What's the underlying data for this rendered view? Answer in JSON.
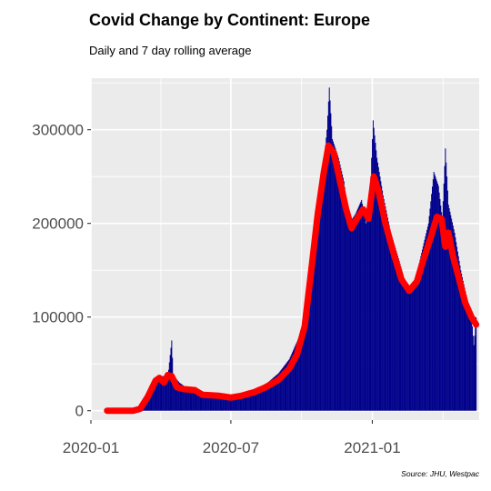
{
  "chart_data": {
    "type": "bar",
    "title": "Covid Change by Continent: Europe",
    "subtitle": "Daily and 7 day rolling average",
    "caption": "Source: JHU, Westpac",
    "xlabel": "",
    "ylabel": "",
    "x_range": [
      "2020-01-01",
      "2021-05-20"
    ],
    "ylim": [
      -10000,
      355000
    ],
    "y_ticks": [
      {
        "value": 0,
        "label": "0"
      },
      {
        "value": 100000,
        "label": "100000"
      },
      {
        "value": 200000,
        "label": "200000"
      },
      {
        "value": 300000,
        "label": "300000"
      }
    ],
    "x_ticks": [
      {
        "date": "2020-01-01",
        "label": "2020-01"
      },
      {
        "date": "2020-07-01",
        "label": "2020-07"
      },
      {
        "date": "2021-01-01",
        "label": "2021-01"
      }
    ],
    "grid": true,
    "colors": {
      "panel": "#ebebeb",
      "grid": "#ffffff",
      "bars": "#00008b",
      "rolling_line": "#ff0000"
    },
    "daily_keypoints": [
      [
        "2020-01-22",
        0
      ],
      [
        "2020-02-20",
        100
      ],
      [
        "2020-03-01",
        800
      ],
      [
        "2020-03-08",
        3000
      ],
      [
        "2020-03-14",
        12000
      ],
      [
        "2020-03-20",
        25000
      ],
      [
        "2020-03-27",
        35000
      ],
      [
        "2020-04-03",
        37000
      ],
      [
        "2020-04-10",
        36000
      ],
      [
        "2020-04-15",
        75000
      ],
      [
        "2020-04-17",
        38000
      ],
      [
        "2020-04-25",
        30000
      ],
      [
        "2020-05-05",
        24000
      ],
      [
        "2020-05-20",
        21000
      ],
      [
        "2020-06-05",
        18000
      ],
      [
        "2020-06-25",
        17000
      ],
      [
        "2020-07-05",
        15000
      ],
      [
        "2020-07-20",
        17000
      ],
      [
        "2020-08-01",
        21000
      ],
      [
        "2020-08-15",
        28000
      ],
      [
        "2020-09-01",
        40000
      ],
      [
        "2020-09-15",
        55000
      ],
      [
        "2020-10-01",
        85000
      ],
      [
        "2020-10-10",
        125000
      ],
      [
        "2020-10-20",
        180000
      ],
      [
        "2020-10-28",
        250000
      ],
      [
        "2020-11-03",
        300000
      ],
      [
        "2020-11-06",
        345000
      ],
      [
        "2020-11-10",
        290000
      ],
      [
        "2020-11-18",
        270000
      ],
      [
        "2020-11-25",
        245000
      ],
      [
        "2020-12-02",
        200000
      ],
      [
        "2020-12-10",
        210000
      ],
      [
        "2020-12-18",
        225000
      ],
      [
        "2020-12-24",
        200000
      ],
      [
        "2020-12-30",
        250000
      ],
      [
        "2021-01-02",
        310000
      ],
      [
        "2021-01-07",
        270000
      ],
      [
        "2021-01-15",
        230000
      ],
      [
        "2021-01-25",
        190000
      ],
      [
        "2021-02-05",
        160000
      ],
      [
        "2021-02-15",
        130000
      ],
      [
        "2021-02-25",
        135000
      ],
      [
        "2021-03-05",
        165000
      ],
      [
        "2021-03-15",
        200000
      ],
      [
        "2021-03-22",
        255000
      ],
      [
        "2021-03-28",
        240000
      ],
      [
        "2021-04-02",
        205000
      ],
      [
        "2021-04-06",
        280000
      ],
      [
        "2021-04-10",
        220000
      ],
      [
        "2021-04-18",
        190000
      ],
      [
        "2021-04-26",
        150000
      ],
      [
        "2021-05-04",
        120000
      ],
      [
        "2021-05-10",
        100000
      ],
      [
        "2021-05-13",
        70000
      ],
      [
        "2021-05-16",
        100000
      ]
    ],
    "rolling_7day_keypoints": [
      [
        "2020-01-22",
        0
      ],
      [
        "2020-02-25",
        0
      ],
      [
        "2020-03-05",
        2000
      ],
      [
        "2020-03-15",
        15000
      ],
      [
        "2020-03-25",
        32000
      ],
      [
        "2020-03-30",
        35000
      ],
      [
        "2020-04-05",
        30000
      ],
      [
        "2020-04-10",
        38000
      ],
      [
        "2020-04-15",
        37000
      ],
      [
        "2020-04-22",
        25000
      ],
      [
        "2020-05-01",
        23000
      ],
      [
        "2020-05-15",
        22000
      ],
      [
        "2020-05-25",
        17000
      ],
      [
        "2020-06-15",
        16000
      ],
      [
        "2020-07-01",
        14000
      ],
      [
        "2020-07-15",
        16000
      ],
      [
        "2020-08-01",
        20000
      ],
      [
        "2020-08-15",
        25000
      ],
      [
        "2020-09-01",
        33000
      ],
      [
        "2020-09-15",
        45000
      ],
      [
        "2020-09-25",
        60000
      ],
      [
        "2020-10-05",
        90000
      ],
      [
        "2020-10-15",
        160000
      ],
      [
        "2020-10-22",
        210000
      ],
      [
        "2020-10-30",
        255000
      ],
      [
        "2020-11-05",
        283000
      ],
      [
        "2020-11-12",
        275000
      ],
      [
        "2020-11-20",
        245000
      ],
      [
        "2020-11-28",
        215000
      ],
      [
        "2020-12-05",
        195000
      ],
      [
        "2020-12-12",
        205000
      ],
      [
        "2020-12-20",
        215000
      ],
      [
        "2020-12-27",
        205000
      ],
      [
        "2021-01-03",
        250000
      ],
      [
        "2021-01-09",
        235000
      ],
      [
        "2021-01-18",
        200000
      ],
      [
        "2021-01-28",
        170000
      ],
      [
        "2021-02-08",
        140000
      ],
      [
        "2021-02-18",
        128000
      ],
      [
        "2021-02-28",
        138000
      ],
      [
        "2021-03-08",
        160000
      ],
      [
        "2021-03-18",
        185000
      ],
      [
        "2021-03-26",
        207000
      ],
      [
        "2021-04-01",
        205000
      ],
      [
        "2021-04-06",
        175000
      ],
      [
        "2021-04-10",
        190000
      ],
      [
        "2021-04-16",
        165000
      ],
      [
        "2021-04-24",
        140000
      ],
      [
        "2021-05-02",
        115000
      ],
      [
        "2021-05-10",
        100000
      ],
      [
        "2021-05-16",
        92000
      ]
    ]
  }
}
